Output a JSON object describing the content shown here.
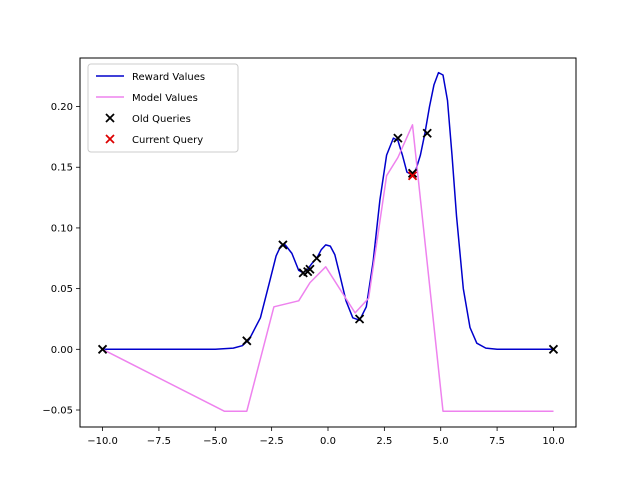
{
  "chart_data": {
    "type": "line",
    "title": "",
    "xlabel": "",
    "ylabel": "",
    "xlim": [
      -11.0,
      11.0
    ],
    "ylim": [
      -0.064,
      0.24
    ],
    "x_ticks": [
      -10.0,
      -7.5,
      -5.0,
      -2.5,
      0.0,
      2.5,
      5.0,
      7.5,
      10.0
    ],
    "x_tick_labels": [
      "−10.0",
      "−7.5",
      "−5.0",
      "−2.5",
      "0.0",
      "2.5",
      "5.0",
      "7.5",
      "10.0"
    ],
    "y_ticks": [
      -0.05,
      0.0,
      0.05,
      0.1,
      0.15,
      0.2
    ],
    "y_tick_labels": [
      "−0.05",
      "0.00",
      "0.05",
      "0.10",
      "0.15",
      "0.20"
    ],
    "grid": false,
    "legend_position": "upper-left",
    "series": [
      {
        "name": "Reward Values",
        "kind": "line",
        "color": "#0000cc",
        "x": [
          -10,
          -5,
          -4.2,
          -3.8,
          -3.5,
          -3.0,
          -2.6,
          -2.3,
          -2.1,
          -1.9,
          -1.6,
          -1.3,
          -1.1,
          -0.9,
          -0.7,
          -0.5,
          -0.3,
          -0.1,
          0.1,
          0.3,
          0.5,
          0.8,
          1.1,
          1.4,
          1.7,
          2.0,
          2.3,
          2.6,
          2.9,
          3.1,
          3.3,
          3.5,
          3.7,
          3.9,
          4.1,
          4.3,
          4.5,
          4.7,
          4.9,
          5.1,
          5.3,
          5.5,
          5.7,
          6.0,
          6.3,
          6.6,
          7.0,
          7.5,
          8.0,
          10
        ],
        "y": [
          0.0,
          0.0,
          0.001,
          0.003,
          0.008,
          0.026,
          0.055,
          0.077,
          0.085,
          0.086,
          0.079,
          0.065,
          0.063,
          0.066,
          0.071,
          0.075,
          0.082,
          0.086,
          0.085,
          0.078,
          0.063,
          0.04,
          0.026,
          0.024,
          0.035,
          0.072,
          0.123,
          0.16,
          0.174,
          0.172,
          0.16,
          0.146,
          0.144,
          0.148,
          0.16,
          0.178,
          0.2,
          0.218,
          0.228,
          0.226,
          0.205,
          0.16,
          0.11,
          0.05,
          0.018,
          0.005,
          0.001,
          0.0,
          0.0,
          0.0
        ]
      },
      {
        "name": "Model Values",
        "kind": "line",
        "color": "#ee82ee",
        "x": [
          -10.0,
          -4.6,
          -3.6,
          -2.4,
          -1.3,
          -0.8,
          -0.1,
          1.2,
          1.8,
          2.6,
          3.1,
          3.75,
          5.1,
          10.0
        ],
        "y": [
          0.0,
          -0.051,
          -0.051,
          0.035,
          0.04,
          0.055,
          0.068,
          0.03,
          0.042,
          0.143,
          0.158,
          0.185,
          -0.051,
          -0.051
        ]
      },
      {
        "name": "Old Queries",
        "kind": "scatter",
        "color": "#000000",
        "marker": "x",
        "x": [
          -10.0,
          -3.6,
          -2.0,
          -1.1,
          -0.9,
          -0.8,
          -0.5,
          1.4,
          3.1,
          3.75,
          4.4,
          10.0
        ],
        "y": [
          0.0,
          0.007,
          0.086,
          0.063,
          0.064,
          0.066,
          0.075,
          0.025,
          0.174,
          0.145,
          0.178,
          0.0
        ]
      },
      {
        "name": "Current Query",
        "kind": "scatter",
        "color": "#dd0000",
        "marker": "x",
        "x": [
          3.75
        ],
        "y": [
          0.143
        ]
      }
    ]
  }
}
